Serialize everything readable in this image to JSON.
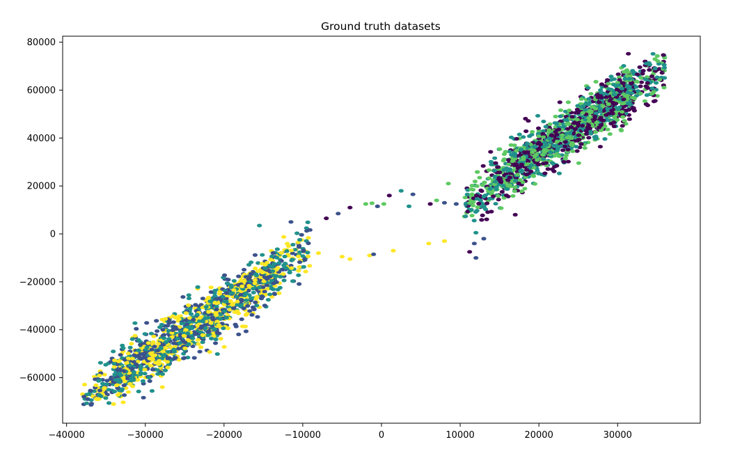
{
  "chart_data": {
    "type": "scatter",
    "title": "Ground truth datasets",
    "xlabel": "",
    "ylabel": "",
    "xlim": [
      -40500,
      40500
    ],
    "ylim": [
      -79000,
      82500
    ],
    "x_ticks": [
      -40000,
      -30000,
      -20000,
      -10000,
      0,
      10000,
      20000,
      30000
    ],
    "x_tick_labels": [
      "−40000",
      "−30000",
      "−20000",
      "−10000",
      "0",
      "10000",
      "20000",
      "30000"
    ],
    "y_ticks": [
      -60000,
      -40000,
      -20000,
      0,
      20000,
      40000,
      60000,
      80000
    ],
    "y_tick_labels": [
      "−60000",
      "−40000",
      "−20000",
      "0",
      "20000",
      "40000",
      "60000",
      "80000"
    ],
    "grid": false,
    "legend": "none",
    "palette": [
      "#440154",
      "#3b528b",
      "#21918c",
      "#5ec962",
      "#fde725"
    ],
    "clusters": [
      {
        "label": "upper-right cluster",
        "classes_present": [
          0,
          2,
          3
        ],
        "x_range": [
          10500,
          36000
        ],
        "y_range": [
          5000,
          76000
        ],
        "trend": "y ≈ 2.2x − 10000",
        "approx_points": 1500
      },
      {
        "label": "lower-left cluster",
        "classes_present": [
          1,
          2,
          4
        ],
        "x_range": [
          -38000,
          -9000
        ],
        "y_range": [
          -72000,
          6000
        ],
        "trend": "y ≈ 2.2x + 14000",
        "approx_points": 1500
      }
    ],
    "outliers": [
      {
        "x": -15500,
        "y": 3500,
        "class": 2
      },
      {
        "x": -11500,
        "y": 5000,
        "class": 1
      },
      {
        "x": -7000,
        "y": 6500,
        "class": 0
      },
      {
        "x": -5500,
        "y": 8500,
        "class": 1
      },
      {
        "x": -4000,
        "y": 11000,
        "class": 0
      },
      {
        "x": -2000,
        "y": 12500,
        "class": 3
      },
      {
        "x": -1200,
        "y": 12800,
        "class": 3
      },
      {
        "x": -500,
        "y": 11500,
        "class": 1
      },
      {
        "x": 300,
        "y": 12500,
        "class": 3
      },
      {
        "x": 1000,
        "y": 16000,
        "class": 0
      },
      {
        "x": 2500,
        "y": 18000,
        "class": 2
      },
      {
        "x": 3500,
        "y": 11500,
        "class": 2
      },
      {
        "x": 4000,
        "y": 16500,
        "class": 1
      },
      {
        "x": 6200,
        "y": 12500,
        "class": 0
      },
      {
        "x": 7000,
        "y": 14000,
        "class": 3
      },
      {
        "x": 8000,
        "y": 13000,
        "class": 1
      },
      {
        "x": 8500,
        "y": 21000,
        "class": 3
      },
      {
        "x": 9500,
        "y": 12500,
        "class": 1
      },
      {
        "x": -8000,
        "y": -8000,
        "class": 4
      },
      {
        "x": -5000,
        "y": -9500,
        "class": 4
      },
      {
        "x": -4000,
        "y": -10500,
        "class": 4
      },
      {
        "x": -1500,
        "y": -9000,
        "class": 4
      },
      {
        "x": -1000,
        "y": -8500,
        "class": 1
      },
      {
        "x": 1500,
        "y": -7000,
        "class": 4
      },
      {
        "x": 6000,
        "y": -4000,
        "class": 4
      },
      {
        "x": 8000,
        "y": -3000,
        "class": 4
      },
      {
        "x": 11200,
        "y": -7500,
        "class": 0
      },
      {
        "x": 11800,
        "y": -4000,
        "class": 1
      },
      {
        "x": 12000,
        "y": -10000,
        "class": 1
      },
      {
        "x": 13000,
        "y": -2000,
        "class": 1
      },
      {
        "x": 12000,
        "y": 500,
        "class": 2
      },
      {
        "x": 17000,
        "y": 8000,
        "class": 0
      }
    ]
  }
}
